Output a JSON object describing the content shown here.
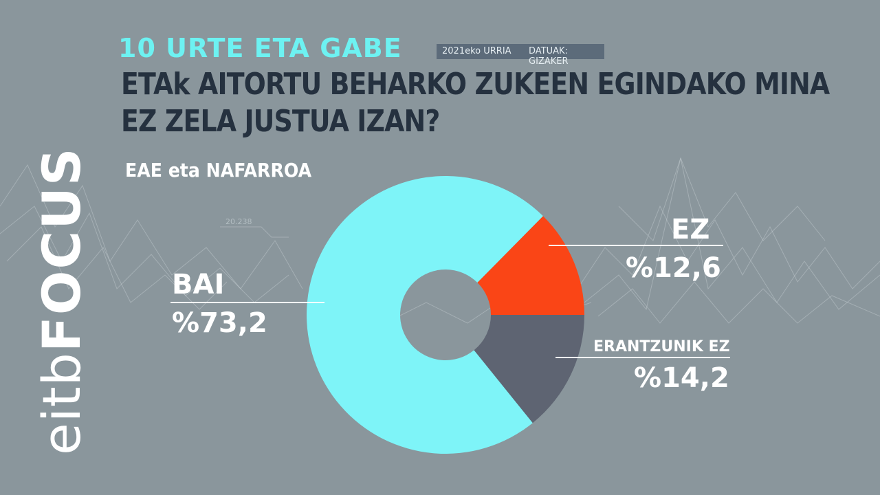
{
  "header": {
    "topic": "10 URTE ETA GABE",
    "date": "2021eko URRIA",
    "source": "DATUAK: GIZAKER",
    "question_line1": "ETAk AITORTU BEHARKO ZUKEEN EGINDAKO MINA",
    "question_line2": "EZ ZELA JUSTUA IZAN?",
    "region": "EAE eta NAFARROA"
  },
  "logo": {
    "part1": "eitb",
    "part2": "FOCUS"
  },
  "background": {
    "number_label": "20.238"
  },
  "chart_data": {
    "type": "pie",
    "categories": [
      "BAI",
      "EZ",
      "ERANTZUNIK EZ"
    ],
    "values": [
      73.2,
      12.6,
      14.2
    ],
    "value_labels": [
      "%73,2",
      "%12,6",
      "%14,2"
    ],
    "colors": [
      "#7ef4f8",
      "#fa4516",
      "#5e6472"
    ],
    "hole": "donut",
    "title": "",
    "grid": false,
    "legend": "none"
  }
}
